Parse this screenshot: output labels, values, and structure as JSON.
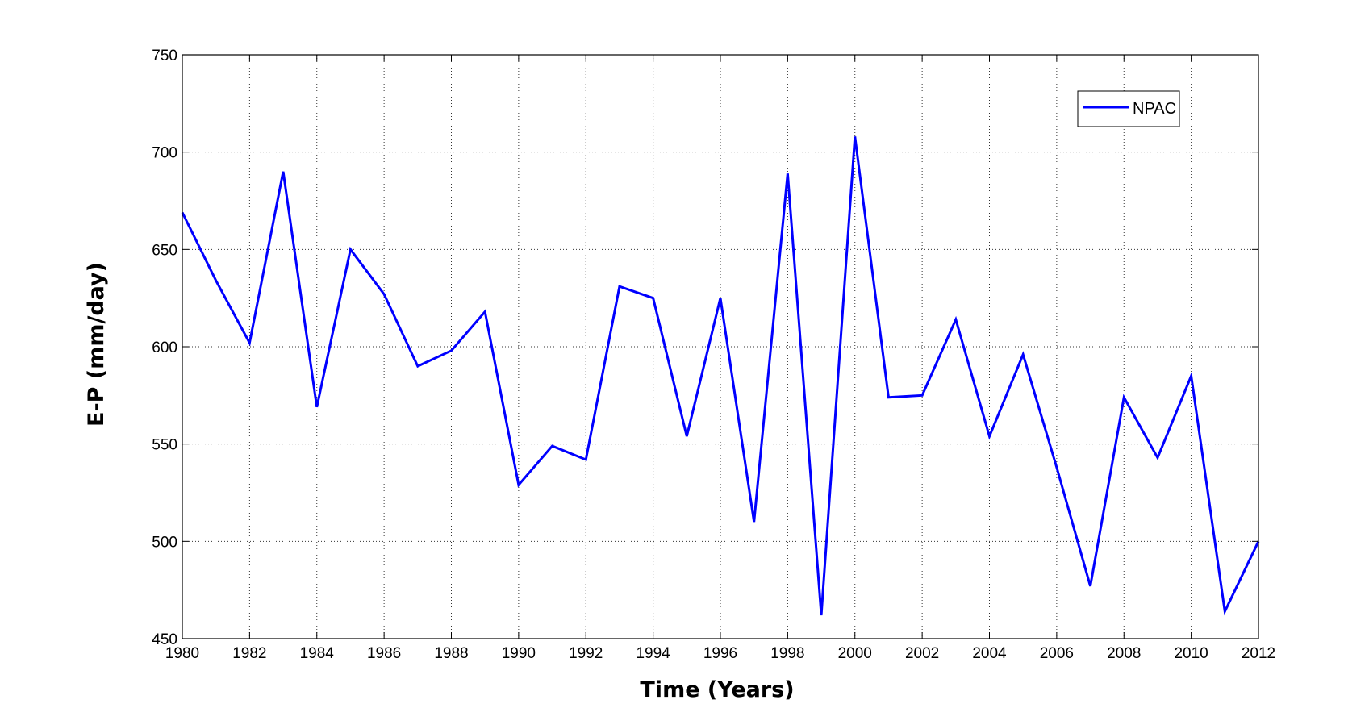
{
  "chart_data": {
    "type": "line",
    "xlabel": "Time (Years)",
    "ylabel": "E-P (mm/day)",
    "xlim": [
      1980,
      2012
    ],
    "ylim": [
      450,
      750
    ],
    "xticks": [
      1980,
      1982,
      1984,
      1986,
      1988,
      1990,
      1992,
      1994,
      1996,
      1998,
      2000,
      2002,
      2004,
      2006,
      2008,
      2010,
      2012
    ],
    "yticks": [
      450,
      500,
      550,
      600,
      650,
      700,
      750
    ],
    "grid": true,
    "legend_position": "top-right",
    "x": [
      1980,
      1981,
      1982,
      1983,
      1984,
      1985,
      1986,
      1987,
      1988,
      1989,
      1990,
      1991,
      1992,
      1993,
      1994,
      1995,
      1996,
      1997,
      1998,
      1999,
      2000,
      2001,
      2002,
      2003,
      2004,
      2005,
      2006,
      2007,
      2008,
      2009,
      2010,
      2011,
      2012
    ],
    "series": [
      {
        "name": "NPAC",
        "color": "#0000ff",
        "values": [
          669,
          634,
          602,
          690,
          569,
          650,
          627,
          590,
          598,
          618,
          529,
          549,
          542,
          631,
          625,
          554,
          625,
          510,
          689,
          462,
          708,
          574,
          575,
          614,
          554,
          596,
          538,
          477,
          574,
          543,
          585,
          464,
          500
        ]
      }
    ]
  }
}
